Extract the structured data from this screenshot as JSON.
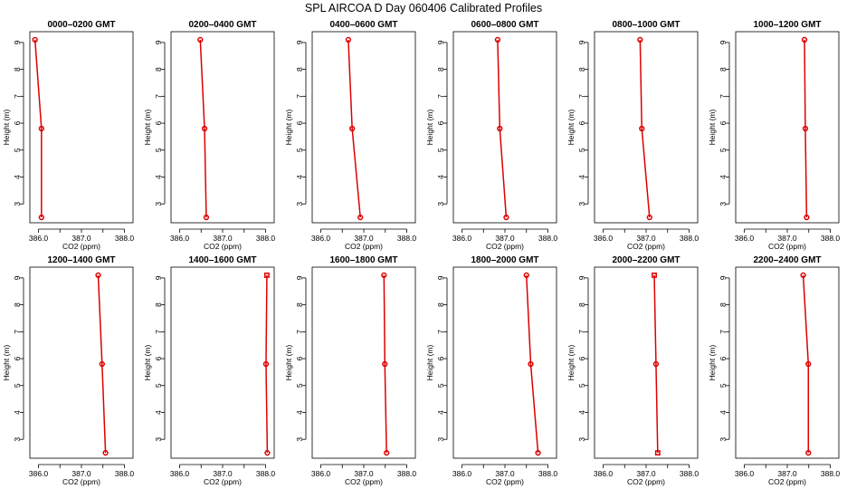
{
  "title": "SPL AIRCOA D  Day 060406  Calibrated Profiles",
  "colors": {
    "series": "#dd0000",
    "axes": "#000000"
  },
  "chart_data": {
    "type": "line",
    "xlabel": "CO2 (ppm)",
    "ylabel": "Height (m)",
    "xlim": [
      385.8,
      388.2
    ],
    "ylim": [
      2.3,
      9.4
    ],
    "xticks": [
      386.0,
      387.0,
      388.0
    ],
    "xtick_labels": [
      "386.0",
      "387.0",
      "388.0"
    ],
    "xticks_minor": [
      386.5,
      387.5
    ],
    "yticks": [
      3,
      4,
      5,
      6,
      7,
      8,
      9
    ],
    "heights": [
      9.1,
      5.8,
      2.5
    ],
    "panels": [
      {
        "title": "0000–0200 GMT",
        "co2": [
          385.92,
          386.07,
          386.07
        ],
        "markers": [
          "circle",
          "circle",
          "circle"
        ]
      },
      {
        "title": "0200–0400 GMT",
        "co2": [
          386.48,
          386.58,
          386.62
        ],
        "markers": [
          "circle",
          "circle",
          "circle"
        ]
      },
      {
        "title": "0400–0600 GMT",
        "co2": [
          386.64,
          386.73,
          386.92
        ],
        "markers": [
          "circle",
          "circle",
          "circle"
        ]
      },
      {
        "title": "0600–0800 GMT",
        "co2": [
          386.83,
          386.88,
          387.03
        ],
        "markers": [
          "circle",
          "circle",
          "circle"
        ]
      },
      {
        "title": "0800–1000 GMT",
        "co2": [
          386.86,
          386.9,
          387.08
        ],
        "markers": [
          "circle",
          "circle",
          "circle"
        ]
      },
      {
        "title": "1000–1200 GMT",
        "co2": [
          387.4,
          387.42,
          387.45
        ],
        "markers": [
          "circle",
          "circle",
          "circle"
        ]
      },
      {
        "title": "1200–1400 GMT",
        "co2": [
          387.39,
          387.48,
          387.56
        ],
        "markers": [
          "circle",
          "circle",
          "circle"
        ]
      },
      {
        "title": "1400–1600 GMT",
        "co2": [
          388.03,
          388.01,
          388.04
        ],
        "markers": [
          "square",
          "circle",
          "circle"
        ]
      },
      {
        "title": "1600–1800 GMT",
        "co2": [
          387.47,
          387.49,
          387.53
        ],
        "markers": [
          "circle",
          "circle",
          "circle"
        ]
      },
      {
        "title": "1800–2000 GMT",
        "co2": [
          387.5,
          387.6,
          387.77
        ],
        "markers": [
          "circle",
          "circle",
          "circle"
        ]
      },
      {
        "title": "2000–2200 GMT",
        "co2": [
          387.19,
          387.23,
          387.27
        ],
        "markers": [
          "square",
          "circle",
          "square"
        ]
      },
      {
        "title": "2200–2400 GMT",
        "co2": [
          387.37,
          387.49,
          387.49
        ],
        "markers": [
          "circle",
          "circle",
          "circle"
        ]
      }
    ]
  }
}
